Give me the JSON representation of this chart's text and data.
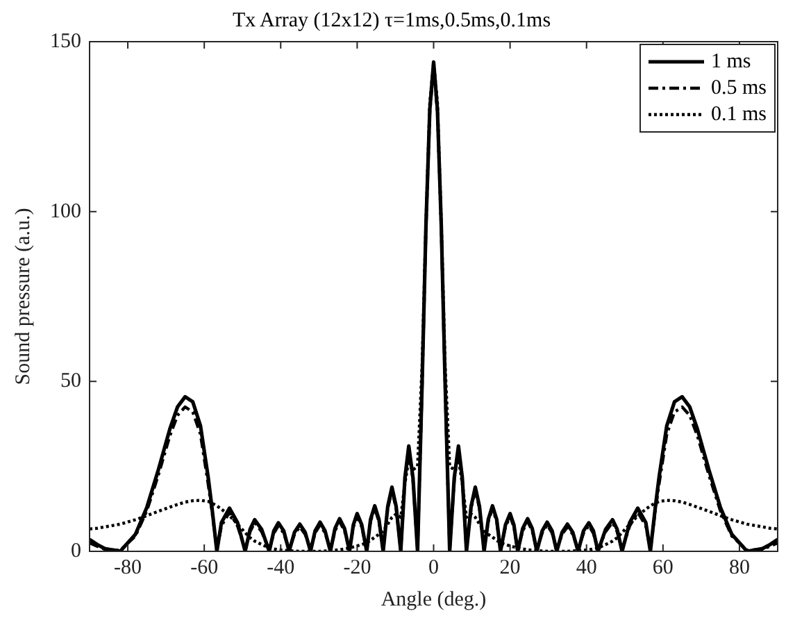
{
  "chart_data": {
    "type": "line",
    "title": "Tx Array (12x12) τ=1ms,0.5ms,0.1ms",
    "xlabel": "Angle (deg.)",
    "ylabel": "Sound pressure (a.u.)",
    "x": [
      -90,
      -88,
      -86,
      -82,
      -78,
      -75,
      -72,
      -69,
      -67,
      -65,
      -63,
      -61,
      -59,
      -58,
      -56.7,
      -55.5,
      -53.4,
      -51.3,
      -49.3,
      -48,
      -46.8,
      -45,
      -43,
      -41.8,
      -40.6,
      -39.2,
      -37.8,
      -36.4,
      -35,
      -33.6,
      -32.2,
      -31,
      -29.7,
      -28.4,
      -27,
      -25.8,
      -24.6,
      -23.3,
      -22,
      -21,
      -20,
      -18.8,
      -17.5,
      -16.5,
      -15.4,
      -14.3,
      -13.2,
      -12,
      -10.9,
      -9.8,
      -8.6,
      -7.5,
      -6.5,
      -5.4,
      -4.2,
      -3,
      -2,
      -1,
      0,
      1,
      2,
      3,
      4.2,
      5.4,
      6.5,
      7.5,
      8.6,
      9.8,
      10.9,
      12,
      13.2,
      14.3,
      15.4,
      16.5,
      17.5,
      18.8,
      20,
      21,
      22,
      23.3,
      24.6,
      25.8,
      27,
      28.4,
      29.7,
      31,
      32.2,
      33.6,
      35,
      36.4,
      37.8,
      39.2,
      40.6,
      41.8,
      43,
      45,
      46.8,
      48,
      49.3,
      51.3,
      53.4,
      55.5,
      56.7,
      58,
      59,
      61,
      63,
      65,
      67,
      69,
      72,
      75,
      78,
      82,
      86,
      88,
      90
    ],
    "series": [
      {
        "name": "1 ms",
        "color": "#000000",
        "line_style": "solid",
        "values": [
          3.5,
          2,
          0.8,
          0,
          5,
          13,
          24,
          36,
          42.5,
          45.5,
          44,
          37,
          22,
          13,
          0,
          8.5,
          12.7,
          8.5,
          0,
          6.5,
          9.3,
          6.5,
          0,
          6,
          8.4,
          6,
          0,
          5.6,
          8,
          5.6,
          0,
          6,
          8.6,
          6,
          0,
          6.7,
          9.6,
          6.7,
          0,
          7.8,
          11.1,
          7.8,
          0,
          9.4,
          13.4,
          9.4,
          0,
          13.2,
          18.9,
          13.2,
          0,
          21.7,
          31,
          21.7,
          0,
          50,
          96,
          130,
          144,
          130,
          96,
          50,
          0,
          21.7,
          31,
          21.7,
          0,
          13.2,
          18.9,
          13.2,
          0,
          9.4,
          13.4,
          9.4,
          0,
          7.8,
          11.1,
          7.8,
          0,
          6.7,
          9.6,
          6.7,
          0,
          6,
          8.6,
          6,
          0,
          5.6,
          8,
          5.6,
          0,
          6,
          8.4,
          6,
          0,
          6.5,
          9.3,
          6.5,
          0,
          8.5,
          12.7,
          8.5,
          0,
          13,
          22,
          37,
          44,
          45.5,
          42.5,
          36,
          24,
          13,
          5,
          0,
          0.8,
          2,
          3.5
        ]
      },
      {
        "name": "0.5 ms",
        "color": "#000000",
        "line_style": "dashed",
        "values": [
          2.5,
          1.5,
          0.6,
          0.3,
          4.5,
          12,
          22.5,
          34,
          40,
          42.5,
          41,
          34.5,
          20,
          12,
          0.5,
          7.5,
          11.5,
          7.5,
          0.5,
          5.8,
          8.5,
          5.8,
          0.5,
          5.3,
          7.6,
          5.3,
          0.5,
          5,
          7.2,
          5,
          0.5,
          5.4,
          7.8,
          5.4,
          0.5,
          6,
          8.8,
          6,
          0.5,
          7.2,
          10.3,
          7.2,
          0.5,
          8.8,
          12.6,
          8.8,
          0.5,
          12.6,
          18,
          12.6,
          0.5,
          21,
          30,
          21,
          0.5,
          49,
          95,
          129,
          143,
          129,
          95,
          49,
          0.5,
          21,
          30,
          21,
          0.5,
          12.6,
          18,
          12.6,
          0.5,
          8.8,
          12.6,
          8.8,
          0.5,
          7.2,
          10.3,
          7.2,
          0.5,
          6,
          8.8,
          6,
          0.5,
          5.4,
          7.8,
          5.4,
          0.5,
          5,
          7.2,
          5,
          0.5,
          5.3,
          7.6,
          5.3,
          0.5,
          5.8,
          8.5,
          5.8,
          0.5,
          7.5,
          11.5,
          7.5,
          0.5,
          12,
          20,
          34.5,
          41,
          42.5,
          40,
          34,
          22.5,
          12,
          4.5,
          0.3,
          0.6,
          1.5,
          2.5
        ]
      },
      {
        "name": "0.1 ms",
        "color": "#000000",
        "line_style": "dotted",
        "values": [
          6.6,
          6.8,
          7.2,
          8,
          9.3,
          10.5,
          11.8,
          13,
          13.8,
          14.5,
          14.9,
          15,
          14.7,
          14.2,
          13.4,
          12.4,
          10.5,
          8,
          5.5,
          4,
          3,
          2,
          1,
          0.7,
          0.5,
          0.3,
          0.2,
          0.1,
          0,
          0,
          0,
          0,
          0,
          0.1,
          0.2,
          0.3,
          0.5,
          0.7,
          1,
          1.3,
          1.6,
          2,
          2.5,
          3.2,
          4.2,
          5,
          6,
          8,
          10,
          11,
          10,
          20,
          27,
          24,
          25,
          55,
          97,
          132,
          144,
          132,
          97,
          55,
          25,
          24,
          27,
          20,
          10,
          11,
          10,
          8,
          6,
          5,
          4.2,
          3.2,
          2.5,
          2,
          1.6,
          1.3,
          1,
          0.7,
          0.5,
          0.3,
          0.2,
          0.1,
          0,
          0,
          0,
          0,
          0,
          0.1,
          0.2,
          0.3,
          0.5,
          0.7,
          1,
          2,
          3,
          4,
          5.5,
          8,
          10.5,
          12.4,
          13.4,
          14.2,
          14.7,
          15,
          14.9,
          14.5,
          13.8,
          13,
          11.8,
          10.5,
          9.3,
          8,
          7.2,
          6.8,
          6.6
        ]
      }
    ],
    "xlim": [
      -90,
      90
    ],
    "xticks": [
      -80,
      -60,
      -40,
      -20,
      0,
      20,
      40,
      60,
      80
    ],
    "ylim": [
      0,
      150
    ],
    "yticks": [
      0,
      50,
      100,
      150
    ],
    "grid": false,
    "legend": "top right",
    "marker": "none"
  }
}
